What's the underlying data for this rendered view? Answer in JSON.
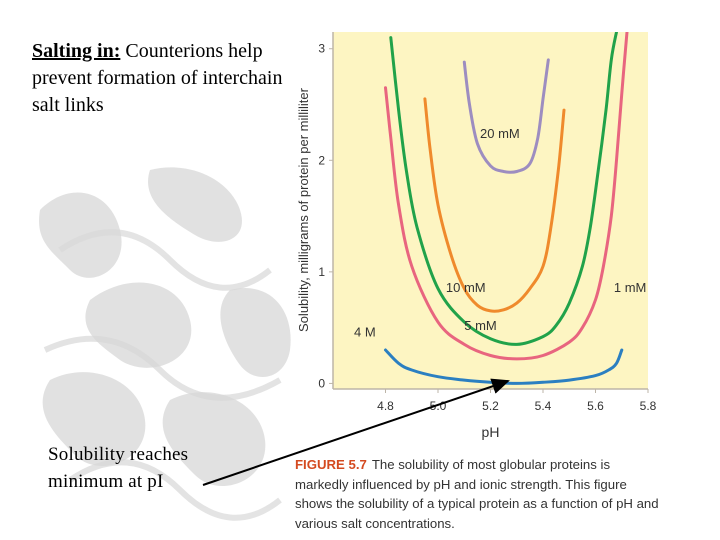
{
  "slide": {
    "heading_label": "Salting in:",
    "heading_text": " Counterions help prevent formation of interchain salt links",
    "note": "Solubility reaches minimum at pI"
  },
  "figure": {
    "number": "FIGURE 5.7",
    "caption": "The solubility of most globular proteins is markedly influenced by pH and ionic strength. This figure shows the solubility of a typical protein as a function of pH and various salt concentrations."
  },
  "colors": {
    "plot_bg": "#fdf5c2",
    "axis": "#bdb5a8",
    "blue": "#2b7fc1",
    "pink": "#e8657f",
    "green": "#21a24a",
    "orange": "#ef8a2c",
    "purple": "#9d8dc0",
    "label": "#333333",
    "caption_title": "#d44a20"
  },
  "chart_data": {
    "type": "line",
    "title": "",
    "xlabel": "pH",
    "ylabel": "Solubility, milligrams of protein per milliliter",
    "xlim": [
      4.6,
      5.8
    ],
    "ylim": [
      -0.05,
      3.15
    ],
    "xticks": [
      "4.8",
      "5.0",
      "5.2",
      "5.4",
      "5.6",
      "5.8"
    ],
    "yticks": [
      "0",
      "1",
      "2",
      "3"
    ],
    "series": [
      {
        "name": "4 M",
        "color_key": "blue",
        "label": "4 M",
        "x": [
          4.8,
          4.85,
          4.9,
          5.0,
          5.1,
          5.2,
          5.3,
          5.4,
          5.5,
          5.6,
          5.65,
          5.68,
          5.7
        ],
        "y": [
          0.3,
          0.18,
          0.12,
          0.06,
          0.03,
          0.01,
          0.0,
          0.01,
          0.03,
          0.07,
          0.12,
          0.18,
          0.3
        ]
      },
      {
        "name": "1 mM",
        "color_key": "pink",
        "label": "1 mM",
        "x": [
          4.8,
          4.82,
          4.85,
          4.9,
          5.0,
          5.1,
          5.2,
          5.3,
          5.4,
          5.5,
          5.55,
          5.6,
          5.63,
          5.66,
          5.68,
          5.7,
          5.72
        ],
        "y": [
          2.65,
          2.2,
          1.6,
          1.05,
          0.55,
          0.35,
          0.25,
          0.22,
          0.25,
          0.37,
          0.5,
          0.75,
          1.05,
          1.5,
          2.0,
          2.6,
          3.2
        ]
      },
      {
        "name": "5 mM",
        "color_key": "green",
        "label": "5 mM",
        "x": [
          4.82,
          4.85,
          4.88,
          4.92,
          5.0,
          5.1,
          5.2,
          5.3,
          5.4,
          5.45,
          5.5,
          5.55,
          5.58,
          5.61,
          5.64,
          5.66,
          5.68
        ],
        "y": [
          3.1,
          2.45,
          1.9,
          1.4,
          0.85,
          0.55,
          0.4,
          0.35,
          0.42,
          0.52,
          0.72,
          1.05,
          1.4,
          1.9,
          2.45,
          2.9,
          3.2
        ]
      },
      {
        "name": "10 mM",
        "color_key": "orange",
        "label": "10 mM",
        "x": [
          4.95,
          4.97,
          5.0,
          5.05,
          5.1,
          5.15,
          5.2,
          5.25,
          5.3,
          5.35,
          5.4,
          5.43,
          5.46,
          5.48
        ],
        "y": [
          2.55,
          2.1,
          1.6,
          1.15,
          0.85,
          0.7,
          0.65,
          0.66,
          0.72,
          0.85,
          1.05,
          1.4,
          1.95,
          2.45
        ]
      },
      {
        "name": "20 mM",
        "color_key": "purple",
        "label": "20 mM",
        "x": [
          5.1,
          5.12,
          5.15,
          5.2,
          5.25,
          5.3,
          5.35,
          5.38,
          5.4,
          5.42
        ],
        "y": [
          2.88,
          2.5,
          2.15,
          1.95,
          1.9,
          1.9,
          1.97,
          2.2,
          2.55,
          2.9
        ]
      }
    ]
  }
}
